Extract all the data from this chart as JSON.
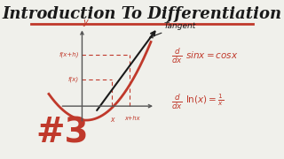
{
  "title": "Introduction To Differentiation",
  "title_fontsize": 13,
  "background_color": "#f0f0eb",
  "separator_color": "#c0392b",
  "number_label": "#3",
  "number_color": "#c0392b",
  "number_fontsize": 28,
  "curve_color": "#c0392b",
  "tangent_color": "#1a1a1a",
  "dashed_color": "#c0392b",
  "text_color": "#c0392b",
  "annotation_color": "#1a1a1a",
  "tangent_label": "Tangent",
  "y_label": "y",
  "fx_label": "f(x+h)",
  "fx2_label": "f(x)",
  "x_label": "x",
  "xh_label": "x+hx"
}
